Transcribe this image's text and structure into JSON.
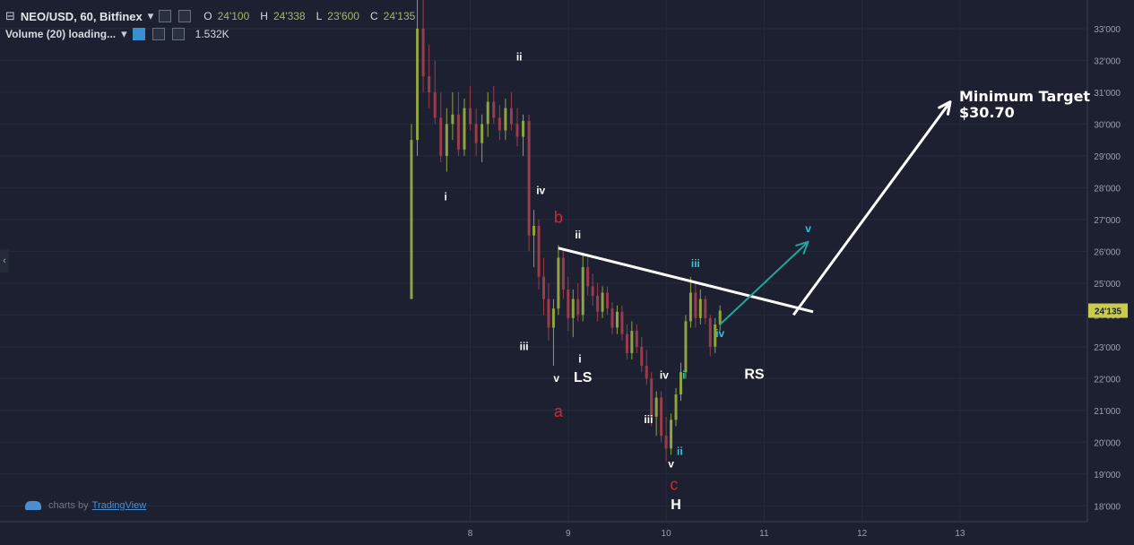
{
  "header": {
    "symbol_title": "NEO/USD, 60, Bitfinex",
    "ohlc": {
      "o_label": "O",
      "o": "24'100",
      "h_label": "H",
      "h": "24'338",
      "l_label": "L",
      "l": "23'600",
      "c_label": "C",
      "c": "24'135"
    },
    "volume_label": "Volume (20) loading...",
    "volume_value": "1.532K"
  },
  "branding": {
    "prefix": "charts by",
    "brand": "TradingView"
  },
  "colors": {
    "bg": "#1c2030",
    "grid": "#262b3a",
    "up": "#8fa33f",
    "down": "#9a3c4c",
    "white": "#ffffff",
    "cyan": "#2ec4d6",
    "red": "#e0202a",
    "arrow_teal": "#22a69a",
    "price_tag": "#c8cc4a"
  },
  "chart_data": {
    "type": "candlestick",
    "symbol": "NEO/USD",
    "interval": "60",
    "exchange": "Bitfinex",
    "x_ticks": [
      "8",
      "9",
      "10",
      "11",
      "12",
      "13"
    ],
    "x_tick_values": [
      8,
      9,
      10,
      11,
      12,
      13
    ],
    "xlim": [
      3.2,
      14.3
    ],
    "y_ticks": [
      "18'000",
      "19'000",
      "20'000",
      "21'000",
      "22'000",
      "23'000",
      "24'000",
      "25'000",
      "26'000",
      "27'000",
      "28'000",
      "29'000",
      "30'000",
      "31'000",
      "32'000",
      "33'000"
    ],
    "ylim": [
      17.5,
      33.9
    ],
    "last_price": 24.135,
    "last_price_label": "24'135",
    "candles": [
      [
        7.4,
        24.5,
        30.0,
        24.5,
        29.5
      ],
      [
        7.46,
        29.5,
        34.0,
        29.0,
        33.0
      ],
      [
        7.52,
        33.0,
        34.0,
        31.0,
        31.5
      ],
      [
        7.58,
        31.5,
        32.5,
        30.5,
        31.0
      ],
      [
        7.64,
        31.0,
        32.0,
        30.0,
        30.2
      ],
      [
        7.7,
        30.2,
        31.0,
        28.8,
        29.0
      ],
      [
        7.76,
        29.0,
        30.5,
        28.5,
        30.0
      ],
      [
        7.82,
        30.0,
        31.0,
        29.5,
        30.3
      ],
      [
        7.88,
        30.3,
        31.0,
        29.0,
        29.2
      ],
      [
        7.94,
        29.2,
        30.8,
        29.0,
        30.5
      ],
      [
        8.0,
        30.5,
        31.2,
        29.8,
        30.0
      ],
      [
        8.06,
        30.0,
        30.5,
        29.0,
        29.4
      ],
      [
        8.12,
        29.4,
        30.3,
        28.8,
        30.0
      ],
      [
        8.18,
        30.0,
        31.0,
        29.6,
        30.7
      ],
      [
        8.24,
        30.7,
        31.2,
        30.0,
        30.2
      ],
      [
        8.3,
        30.2,
        30.6,
        29.5,
        29.8
      ],
      [
        8.36,
        29.8,
        30.8,
        29.5,
        30.5
      ],
      [
        8.42,
        30.5,
        31.0,
        29.8,
        30.0
      ],
      [
        8.48,
        30.0,
        30.5,
        29.3,
        29.6
      ],
      [
        8.54,
        29.6,
        30.3,
        29.0,
        30.1
      ],
      [
        8.6,
        30.1,
        30.3,
        26.0,
        26.5
      ],
      [
        8.65,
        26.5,
        27.3,
        25.5,
        26.8
      ],
      [
        8.7,
        26.8,
        27.0,
        24.8,
        25.2
      ],
      [
        8.75,
        25.2,
        25.8,
        24.0,
        24.5
      ],
      [
        8.8,
        24.5,
        25.0,
        23.2,
        23.6
      ],
      [
        8.85,
        23.6,
        24.5,
        22.4,
        24.2
      ],
      [
        8.9,
        24.2,
        26.2,
        24.0,
        25.8
      ],
      [
        8.95,
        25.8,
        26.0,
        24.5,
        24.8
      ],
      [
        9.0,
        24.8,
        25.2,
        23.5,
        23.9
      ],
      [
        9.05,
        23.9,
        24.8,
        23.3,
        24.5
      ],
      [
        9.1,
        24.5,
        25.0,
        23.8,
        24.0
      ],
      [
        9.15,
        24.0,
        25.9,
        23.8,
        25.5
      ],
      [
        9.2,
        25.5,
        25.8,
        24.6,
        24.9
      ],
      [
        9.25,
        24.9,
        25.3,
        24.3,
        24.6
      ],
      [
        9.3,
        24.6,
        25.0,
        23.8,
        24.1
      ],
      [
        9.35,
        24.1,
        24.9,
        23.9,
        24.7
      ],
      [
        9.4,
        24.7,
        24.9,
        24.0,
        24.2
      ],
      [
        9.45,
        24.2,
        24.4,
        23.4,
        23.6
      ],
      [
        9.5,
        23.6,
        24.3,
        23.4,
        24.1
      ],
      [
        9.55,
        24.1,
        24.3,
        23.2,
        23.4
      ],
      [
        9.6,
        23.4,
        23.7,
        22.6,
        22.8
      ],
      [
        9.65,
        22.8,
        23.8,
        22.6,
        23.5
      ],
      [
        9.7,
        23.5,
        23.7,
        22.8,
        23.0
      ],
      [
        9.75,
        23.0,
        23.3,
        22.2,
        22.4
      ],
      [
        9.8,
        22.4,
        22.9,
        21.8,
        22.0
      ],
      [
        9.85,
        22.0,
        22.2,
        20.5,
        20.8
      ],
      [
        9.9,
        20.8,
        21.6,
        20.2,
        21.4
      ],
      [
        9.95,
        21.4,
        21.6,
        20.0,
        20.2
      ],
      [
        10.0,
        20.2,
        20.8,
        19.4,
        19.8
      ],
      [
        10.05,
        19.8,
        20.9,
        19.6,
        20.7
      ],
      [
        10.1,
        20.7,
        21.7,
        20.5,
        21.5
      ],
      [
        10.15,
        21.5,
        22.5,
        21.3,
        22.2
      ],
      [
        10.2,
        22.2,
        24.0,
        22.0,
        23.8
      ],
      [
        10.25,
        23.8,
        25.2,
        23.6,
        24.7
      ],
      [
        10.3,
        24.7,
        25.0,
        23.6,
        23.9
      ],
      [
        10.35,
        23.9,
        24.8,
        23.7,
        24.5
      ],
      [
        10.4,
        24.5,
        24.6,
        23.7,
        23.9
      ],
      [
        10.45,
        23.9,
        24.0,
        22.7,
        23.0
      ],
      [
        10.5,
        23.0,
        23.9,
        22.8,
        23.7
      ],
      [
        10.55,
        23.7,
        24.3,
        23.5,
        24.135
      ]
    ],
    "waves": {
      "white": [
        {
          "label": "ii",
          "x": 8.5,
          "y": 32.0
        },
        {
          "label": "i",
          "x": 7.75,
          "y": 27.6
        },
        {
          "label": "iv",
          "x": 8.72,
          "y": 27.8
        },
        {
          "label": "iii",
          "x": 8.55,
          "y": 22.9
        },
        {
          "label": "v",
          "x": 8.88,
          "y": 21.9
        },
        {
          "label": "ii",
          "x": 9.1,
          "y": 26.4
        },
        {
          "label": "i",
          "x": 9.12,
          "y": 22.5
        },
        {
          "label": "iv",
          "x": 9.98,
          "y": 22.0
        },
        {
          "label": "iii",
          "x": 9.82,
          "y": 20.6
        },
        {
          "label": "v",
          "x": 10.05,
          "y": 19.2
        }
      ],
      "cyan": [
        {
          "label": "i",
          "x": 10.18,
          "y": 22.0
        },
        {
          "label": "ii",
          "x": 10.14,
          "y": 19.6
        },
        {
          "label": "iii",
          "x": 10.3,
          "y": 25.5
        },
        {
          "label": "iv",
          "x": 10.55,
          "y": 23.3
        },
        {
          "label": "v",
          "x": 11.45,
          "y": 26.6
        }
      ],
      "red": [
        {
          "label": "b",
          "x": 8.9,
          "y": 26.9
        },
        {
          "label": "a",
          "x": 8.9,
          "y": 20.8
        },
        {
          "label": "c",
          "x": 10.08,
          "y": 18.5
        }
      ],
      "pattern": [
        {
          "label": "LS",
          "x": 9.15,
          "y": 21.9
        },
        {
          "label": "H",
          "x": 10.1,
          "y": 17.9
        },
        {
          "label": "RS",
          "x": 10.9,
          "y": 22.0
        }
      ]
    },
    "neckline": {
      "from": [
        8.9,
        26.1
      ],
      "to": [
        11.5,
        24.1
      ]
    },
    "target_arrow": {
      "from": [
        11.3,
        24.0
      ],
      "to": [
        12.9,
        30.7
      ]
    },
    "wave_arrow": {
      "from": [
        10.55,
        23.7
      ],
      "to": [
        11.45,
        26.3
      ]
    },
    "annotation": {
      "line1": "Minimum Target",
      "line2": "$30.70"
    }
  }
}
